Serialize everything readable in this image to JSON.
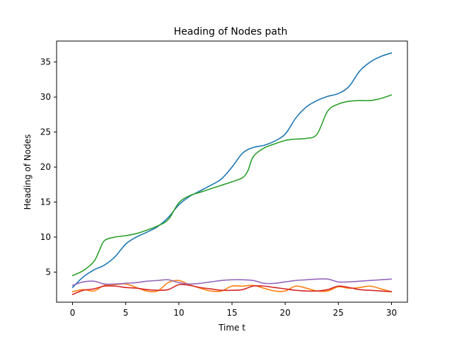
{
  "chart_data": {
    "type": "line",
    "title": "Heading of Nodes path",
    "xlabel": "Time t",
    "ylabel": "Heading of Nodes",
    "xlim": [
      -1.5,
      31.5
    ],
    "ylim": [
      0.7,
      38.0
    ],
    "xticks": [
      0,
      5,
      10,
      15,
      20,
      25,
      30
    ],
    "yticks": [
      5,
      10,
      15,
      20,
      25,
      30,
      35
    ],
    "grid": false,
    "legend": "none",
    "series": [
      {
        "color": "#1f77b4",
        "x": [
          0,
          1,
          2,
          3,
          4,
          5,
          6,
          7,
          8,
          9,
          10,
          11,
          12,
          13,
          14,
          15,
          16,
          17,
          18,
          19,
          20,
          21,
          22,
          23,
          24,
          25,
          26,
          27,
          28,
          29,
          30
        ],
        "y": [
          2.8,
          4.3,
          5.3,
          6.0,
          7.2,
          9.0,
          10.0,
          10.7,
          11.5,
          12.8,
          14.6,
          15.8,
          16.6,
          17.4,
          18.3,
          20.0,
          22.0,
          22.8,
          23.1,
          23.7,
          24.7,
          27.0,
          28.6,
          29.5,
          30.1,
          30.5,
          31.5,
          33.7,
          35.0,
          35.8,
          36.3
        ]
      },
      {
        "color": "#ff7f0e",
        "x": [
          0,
          1,
          2,
          3,
          4,
          5,
          6,
          7,
          8,
          9,
          10,
          11,
          12,
          13,
          14,
          15,
          16,
          17,
          18,
          19,
          20,
          21,
          22,
          23,
          24,
          25,
          26,
          27,
          28,
          29,
          30
        ],
        "y": [
          2.2,
          2.5,
          2.3,
          3.1,
          3.2,
          3.3,
          2.8,
          2.3,
          2.3,
          3.5,
          3.8,
          3.2,
          2.7,
          2.3,
          2.3,
          3.0,
          3.0,
          3.1,
          2.7,
          2.3,
          2.3,
          3.0,
          2.7,
          2.3,
          2.3,
          2.9,
          2.7,
          2.8,
          3.0,
          2.6,
          2.2
        ]
      },
      {
        "color": "#2ca02c",
        "x": [
          0,
          1,
          2,
          2.5,
          3,
          4,
          5,
          6,
          7,
          8,
          9,
          10,
          11,
          12,
          13,
          14,
          15,
          16,
          16.5,
          17,
          18,
          19,
          20,
          21,
          22,
          23,
          24,
          25,
          26,
          27,
          28,
          29,
          30
        ],
        "y": [
          4.5,
          5.2,
          6.5,
          8.0,
          9.5,
          10.0,
          10.2,
          10.5,
          11.0,
          11.6,
          12.5,
          14.9,
          15.9,
          16.4,
          16.9,
          17.4,
          17.9,
          18.5,
          19.5,
          21.5,
          22.7,
          23.3,
          23.8,
          24.0,
          24.1,
          24.7,
          28.0,
          29.0,
          29.4,
          29.5,
          29.5,
          29.8,
          30.3
        ]
      },
      {
        "color": "#d62728",
        "x": [
          0,
          1,
          2,
          3,
          4,
          5,
          6,
          7,
          8,
          9,
          10,
          11,
          12,
          13,
          14,
          15,
          16,
          17,
          18,
          19,
          20,
          21,
          22,
          23,
          24,
          25,
          26,
          27,
          28,
          29,
          30
        ],
        "y": [
          1.8,
          2.4,
          2.6,
          3.0,
          3.0,
          2.8,
          2.7,
          2.5,
          2.4,
          2.5,
          3.2,
          3.1,
          2.8,
          2.6,
          2.4,
          2.4,
          2.5,
          3.0,
          3.0,
          2.8,
          2.6,
          2.4,
          2.3,
          2.3,
          2.5,
          3.0,
          2.8,
          2.5,
          2.4,
          2.3,
          2.2
        ]
      },
      {
        "color": "#9467bd",
        "x": [
          0,
          1,
          2,
          3,
          4,
          5,
          6,
          7,
          8,
          9,
          10,
          11,
          12,
          13,
          14,
          15,
          16,
          17,
          18,
          19,
          20,
          21,
          22,
          23,
          24,
          25,
          26,
          27,
          28,
          29,
          30
        ],
        "y": [
          3.1,
          3.6,
          3.7,
          3.3,
          3.3,
          3.4,
          3.5,
          3.7,
          3.8,
          3.9,
          3.5,
          3.3,
          3.4,
          3.6,
          3.8,
          3.9,
          3.9,
          3.8,
          3.4,
          3.4,
          3.6,
          3.8,
          3.9,
          4.0,
          4.0,
          3.6,
          3.6,
          3.7,
          3.8,
          3.9,
          4.0
        ]
      }
    ]
  }
}
